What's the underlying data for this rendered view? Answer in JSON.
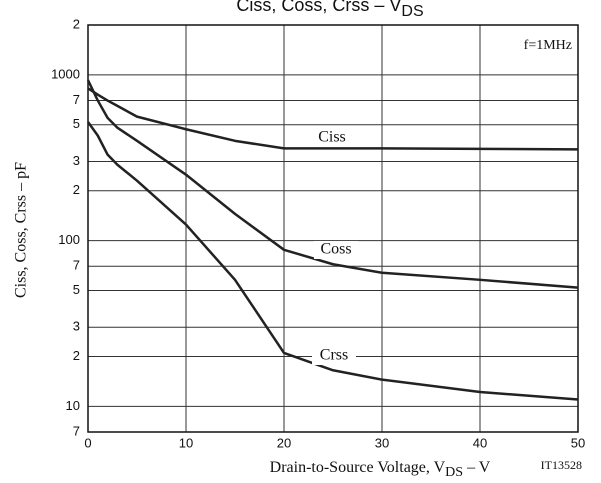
{
  "chart_data": {
    "type": "line",
    "title": [
      "Ciss,  Coss,  Crss  –  V",
      "DS"
    ],
    "xlabel": [
      "Drain-to-Source Voltage, V",
      "DS",
      "  –  V"
    ],
    "ylabel": "Ciss,  Coss,  Crss  –  pF",
    "annotations": [
      "f=1MHz",
      "IT13528"
    ],
    "x": [
      0,
      1,
      2,
      3,
      5,
      10,
      15,
      20,
      25,
      30,
      40,
      50
    ],
    "series": [
      {
        "name": "Ciss",
        "color": "#222222",
        "values": [
          830,
          760,
          700,
          650,
          560,
          470,
          400,
          360,
          360,
          360,
          358,
          355
        ]
      },
      {
        "name": "Coss",
        "color": "#222222",
        "values": [
          930,
          700,
          550,
          480,
          400,
          250,
          145,
          88,
          72,
          64,
          58,
          52
        ]
      },
      {
        "name": "Crss",
        "color": "#222222",
        "values": [
          520,
          430,
          330,
          287,
          230,
          125,
          58,
          21,
          16.5,
          14.5,
          12.2,
          11
        ]
      }
    ],
    "xlim": [
      0,
      50
    ],
    "xticks": [
      0,
      10,
      20,
      30,
      40,
      50
    ],
    "ylim": [
      7,
      2000
    ],
    "log_y": true,
    "yticks": [
      {
        "value": 2000,
        "label": "2"
      },
      1000,
      {
        "value": 700,
        "label": "7"
      },
      {
        "value": 500,
        "label": "5"
      },
      {
        "value": 300,
        "label": "3"
      },
      {
        "value": 200,
        "label": "2"
      },
      100,
      {
        "value": 70,
        "label": "7"
      },
      {
        "value": 50,
        "label": "5"
      },
      {
        "value": 30,
        "label": "3"
      },
      {
        "value": 20,
        "label": "2"
      },
      10,
      7
    ],
    "grid": true
  }
}
